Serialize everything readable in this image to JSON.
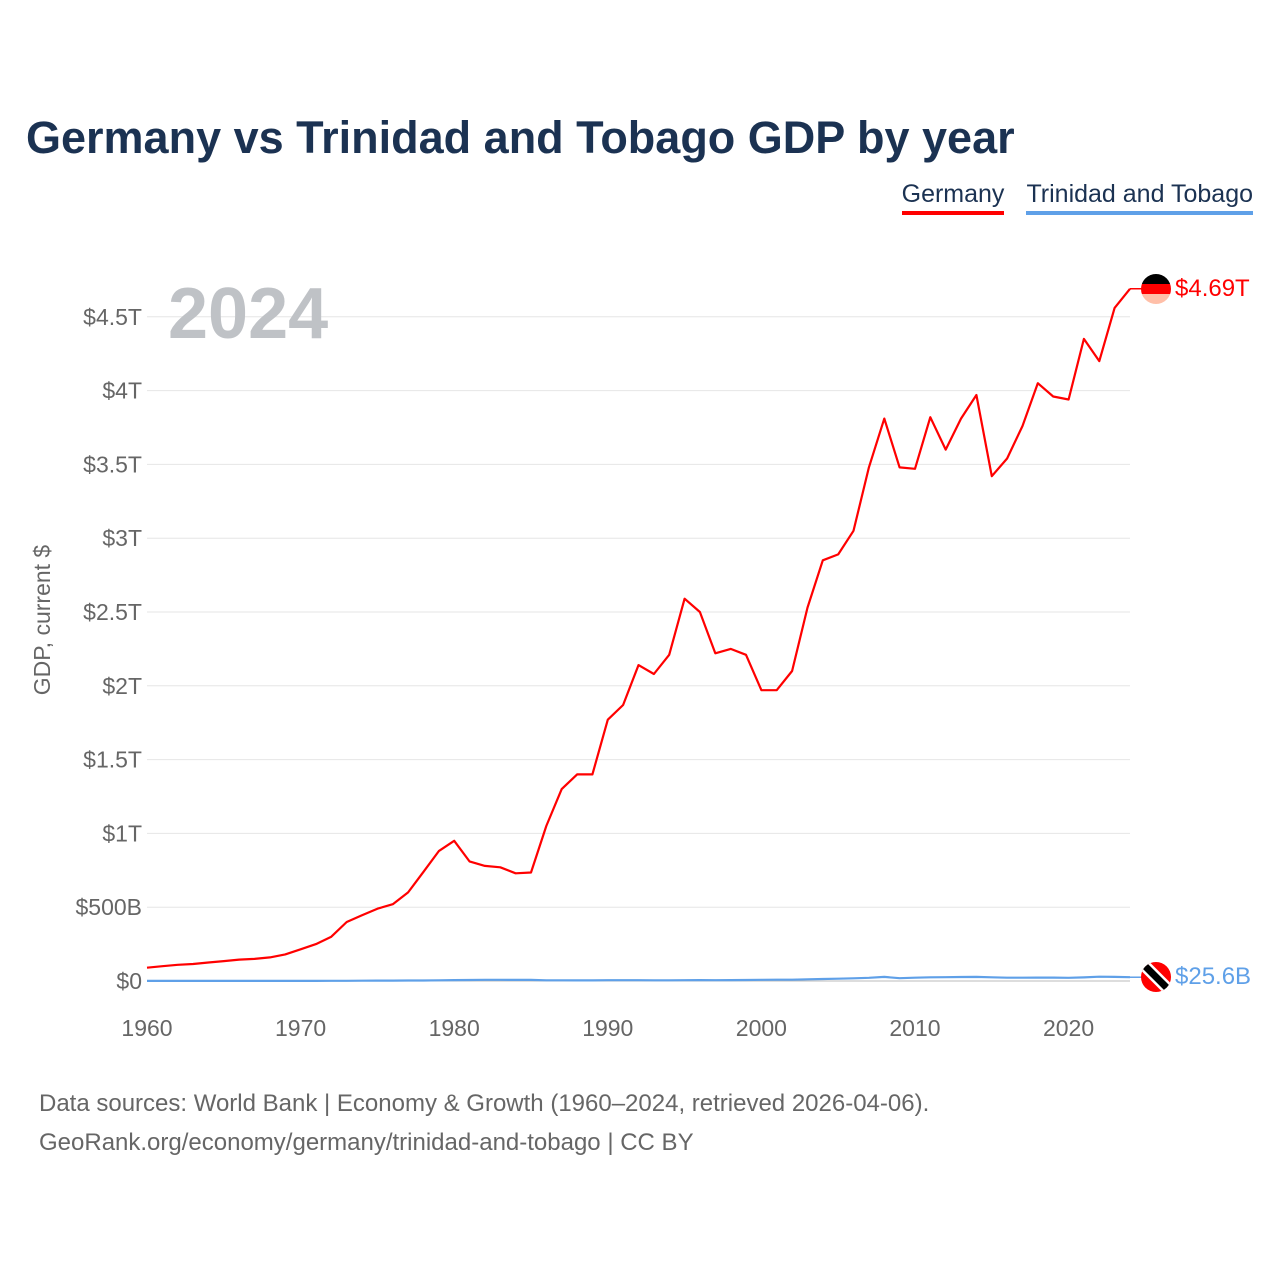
{
  "title": "Germany vs Trinidad and Tobago GDP by year",
  "year_label": "2024",
  "footer": {
    "line1": "Data sources: World Bank | Economy & Growth (1960–2024, retrieved 2026-04-06).",
    "line2": "GeoRank.org/economy/germany/trinidad-and-tobago | CC BY"
  },
  "chart_data": {
    "type": "line",
    "title": "Germany vs Trinidad and Tobago GDP by year",
    "xlabel": "",
    "ylabel": "GDP, current $",
    "xlim": [
      1960,
      2024
    ],
    "ylim": [
      0,
      4.8
    ],
    "y_unit": "trillion USD",
    "grid": true,
    "legend_position": "top-right",
    "x_ticks": [
      1960,
      1970,
      1980,
      1990,
      2000,
      2010,
      2020
    ],
    "x_tick_labels": [
      "1960",
      "1970",
      "1980",
      "1990",
      "2000",
      "2010",
      "2020"
    ],
    "y_ticks": [
      0,
      0.5,
      1,
      1.5,
      2,
      2.5,
      3,
      3.5,
      4,
      4.5
    ],
    "y_tick_labels": [
      "$0",
      "$500B",
      "$1T",
      "$1.5T",
      "$2T",
      "$2.5T",
      "$3T",
      "$3.5T",
      "$4T",
      "$4.5T"
    ],
    "x": [
      1960,
      1961,
      1962,
      1963,
      1964,
      1965,
      1966,
      1967,
      1968,
      1969,
      1970,
      1971,
      1972,
      1973,
      1974,
      1975,
      1976,
      1977,
      1978,
      1979,
      1980,
      1981,
      1982,
      1983,
      1984,
      1985,
      1986,
      1987,
      1988,
      1989,
      1990,
      1991,
      1992,
      1993,
      1994,
      1995,
      1996,
      1997,
      1998,
      1999,
      2000,
      2001,
      2002,
      2003,
      2004,
      2005,
      2006,
      2007,
      2008,
      2009,
      2010,
      2011,
      2012,
      2013,
      2014,
      2015,
      2016,
      2017,
      2018,
      2019,
      2020,
      2021,
      2022,
      2023,
      2024
    ],
    "series": [
      {
        "name": "Germany",
        "color": "#ff0000",
        "end_label": "$4.69T",
        "values": [
          0.09,
          0.1,
          0.11,
          0.115,
          0.125,
          0.135,
          0.145,
          0.15,
          0.16,
          0.18,
          0.215,
          0.25,
          0.3,
          0.4,
          0.445,
          0.49,
          0.52,
          0.6,
          0.74,
          0.88,
          0.95,
          0.81,
          0.78,
          0.77,
          0.73,
          0.735,
          1.05,
          1.3,
          1.4,
          1.4,
          1.77,
          1.87,
          2.14,
          2.08,
          2.21,
          2.59,
          2.5,
          2.22,
          2.25,
          2.21,
          1.97,
          1.97,
          2.1,
          2.53,
          2.85,
          2.89,
          3.05,
          3.48,
          3.81,
          3.48,
          3.47,
          3.82,
          3.6,
          3.81,
          3.97,
          3.42,
          3.54,
          3.76,
          4.05,
          3.96,
          3.94,
          4.35,
          4.2,
          4.56,
          4.69
        ]
      },
      {
        "name": "Trinidad and Tobago",
        "color": "#5fa0e8",
        "end_label": "$25.6B",
        "values": [
          0.0005,
          0.0006,
          0.0006,
          0.0007,
          0.0007,
          0.0007,
          0.0008,
          0.0008,
          0.0008,
          0.0009,
          0.0009,
          0.001,
          0.0011,
          0.0012,
          0.002,
          0.0024,
          0.0026,
          0.0031,
          0.0036,
          0.0045,
          0.0062,
          0.0069,
          0.008,
          0.0078,
          0.0077,
          0.0074,
          0.0048,
          0.0047,
          0.0044,
          0.0043,
          0.0051,
          0.0053,
          0.0054,
          0.0047,
          0.005,
          0.0053,
          0.0058,
          0.0057,
          0.006,
          0.0068,
          0.0082,
          0.0088,
          0.009,
          0.0113,
          0.0133,
          0.0159,
          0.0184,
          0.0216,
          0.0279,
          0.0192,
          0.0222,
          0.0254,
          0.0256,
          0.0273,
          0.0276,
          0.0251,
          0.0224,
          0.0223,
          0.0232,
          0.0231,
          0.0216,
          0.0245,
          0.0293,
          0.0279,
          0.0256
        ]
      }
    ]
  }
}
